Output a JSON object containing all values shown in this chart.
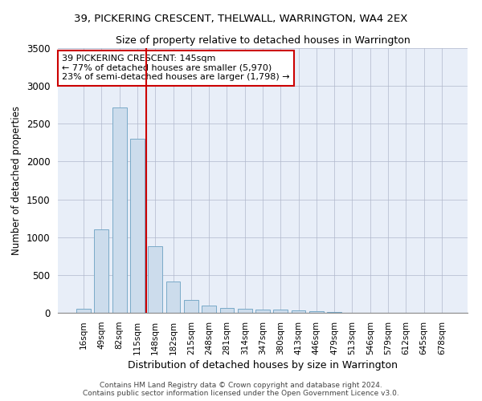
{
  "title_line1": "39, PICKERING CRESCENT, THELWALL, WARRINGTON, WA4 2EX",
  "title_line2": "Size of property relative to detached houses in Warrington",
  "xlabel": "Distribution of detached houses by size in Warrington",
  "ylabel": "Number of detached properties",
  "bar_color": "#ccdcec",
  "bar_edge_color": "#7aaac8",
  "background_color": "#e8eef8",
  "categories": [
    "16sqm",
    "49sqm",
    "82sqm",
    "115sqm",
    "148sqm",
    "182sqm",
    "215sqm",
    "248sqm",
    "281sqm",
    "314sqm",
    "347sqm",
    "380sqm",
    "413sqm",
    "446sqm",
    "479sqm",
    "513sqm",
    "546sqm",
    "579sqm",
    "612sqm",
    "645sqm",
    "678sqm"
  ],
  "values": [
    50,
    1100,
    2720,
    2300,
    880,
    415,
    175,
    100,
    65,
    55,
    45,
    38,
    30,
    18,
    10,
    5,
    5,
    5,
    5,
    5,
    5
  ],
  "ylim": [
    0,
    3500
  ],
  "yticks": [
    0,
    500,
    1000,
    1500,
    2000,
    2500,
    3000,
    3500
  ],
  "red_line_x": 3.5,
  "annotation_text_line1": "39 PICKERING CRESCENT: 145sqm",
  "annotation_text_line2": "← 77% of detached houses are smaller (5,970)",
  "annotation_text_line3": "23% of semi-detached houses are larger (1,798) →",
  "footer_line1": "Contains HM Land Registry data © Crown copyright and database right 2024.",
  "footer_line2": "Contains public sector information licensed under the Open Government Licence v3.0.",
  "red_line_color": "#cc0000",
  "annotation_box_facecolor": "#ffffff",
  "annotation_box_edgecolor": "#cc0000"
}
